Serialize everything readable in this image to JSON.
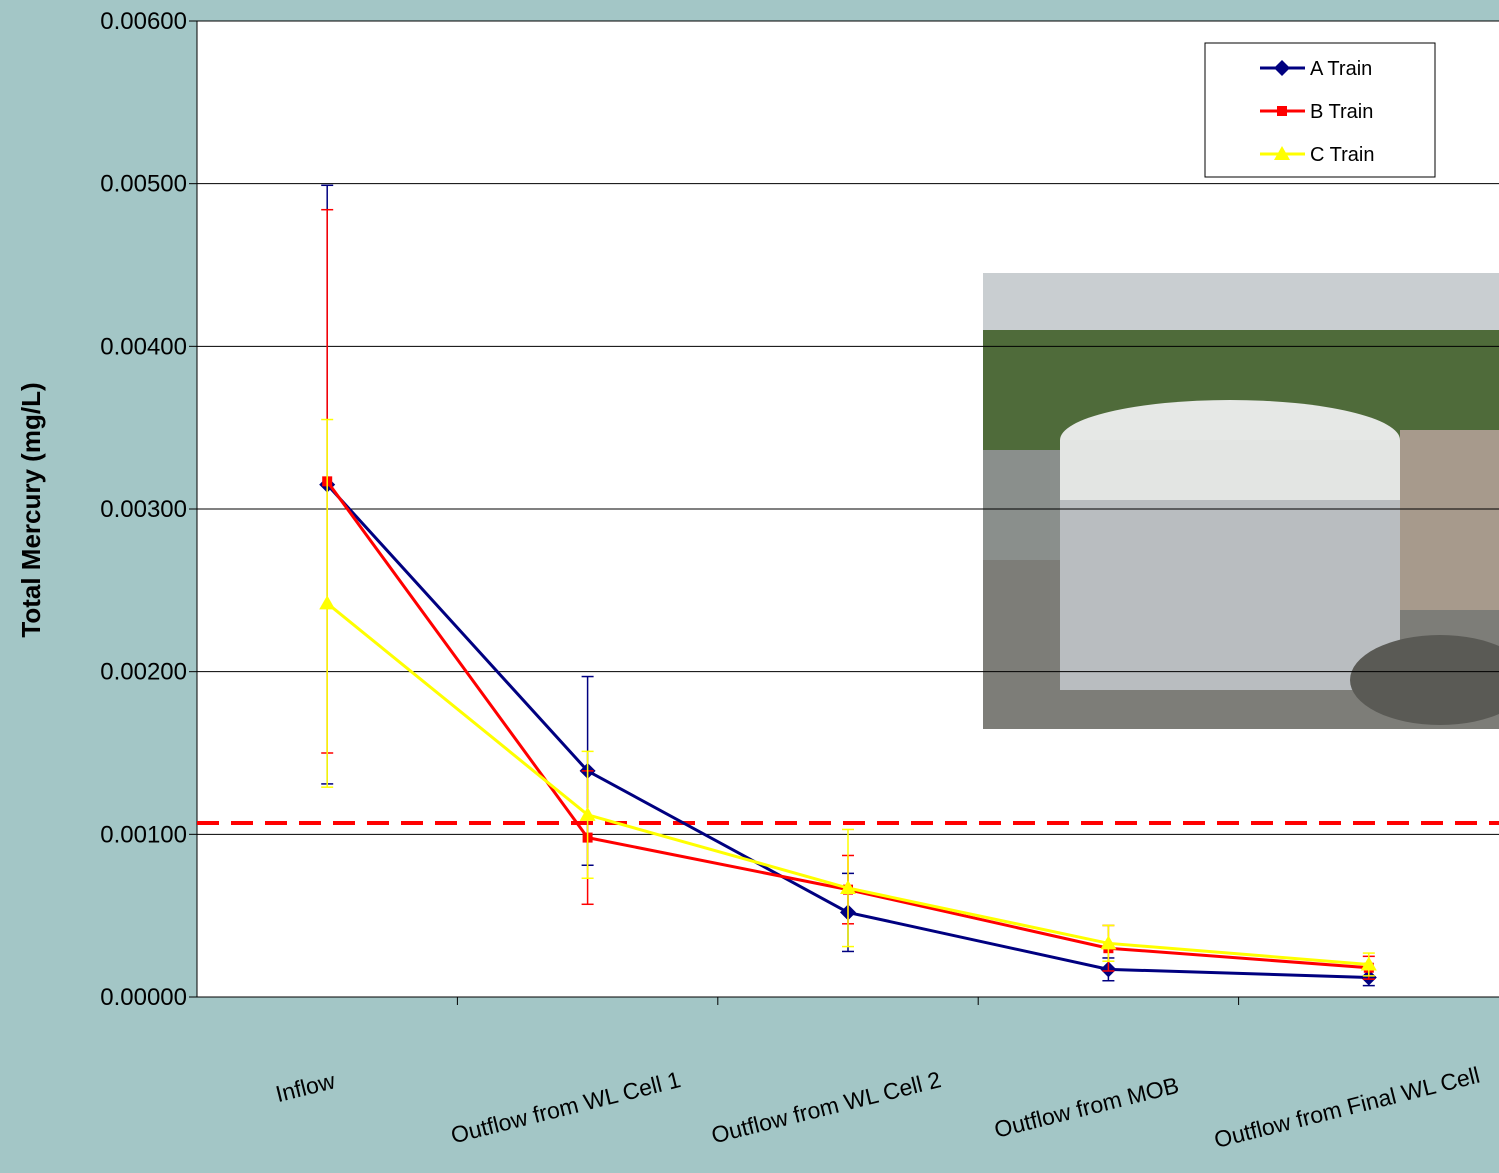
{
  "chart_data": {
    "type": "line",
    "y_label": "Total Mercury (mg/L)",
    "categories": [
      "Inflow",
      "Outflow from WL Cell 1",
      "Outflow from WL Cell 2",
      "Outflow from MOB",
      "Outflow from Final WL Cell"
    ],
    "series": [
      {
        "name": "A Train",
        "color": "#000080",
        "marker": "diamond",
        "values": [
          0.00315,
          0.00139,
          0.00052,
          0.00017,
          0.00012
        ],
        "errors": [
          0.00184,
          0.00058,
          0.00024,
          7e-05,
          5e-05
        ]
      },
      {
        "name": "B Train",
        "color": "#ff0000",
        "marker": "square",
        "values": [
          0.00317,
          0.00098,
          0.00066,
          0.0003,
          0.00018
        ],
        "errors": [
          0.00167,
          0.00041,
          0.00021,
          0.00014,
          7e-05
        ]
      },
      {
        "name": "C Train",
        "color": "#ffff00",
        "marker": "triangle",
        "values": [
          0.00242,
          0.00112,
          0.00067,
          0.00033,
          0.0002
        ],
        "errors": [
          0.00113,
          0.00039,
          0.00036,
          0.00011,
          7e-05
        ]
      }
    ],
    "reference_line": 0.00107,
    "ylim": [
      0,
      0.006
    ],
    "yticks": [
      {
        "value": 0,
        "label": "0.00000"
      },
      {
        "value": 0.001,
        "label": "0.00100"
      },
      {
        "value": 0.002,
        "label": "0.00200"
      },
      {
        "value": 0.003,
        "label": "0.00300"
      },
      {
        "value": 0.004,
        "label": "0.00400"
      },
      {
        "value": 0.005,
        "label": "0.00500"
      },
      {
        "value": 0.006,
        "label": "0.00600"
      }
    ],
    "grid": true
  }
}
